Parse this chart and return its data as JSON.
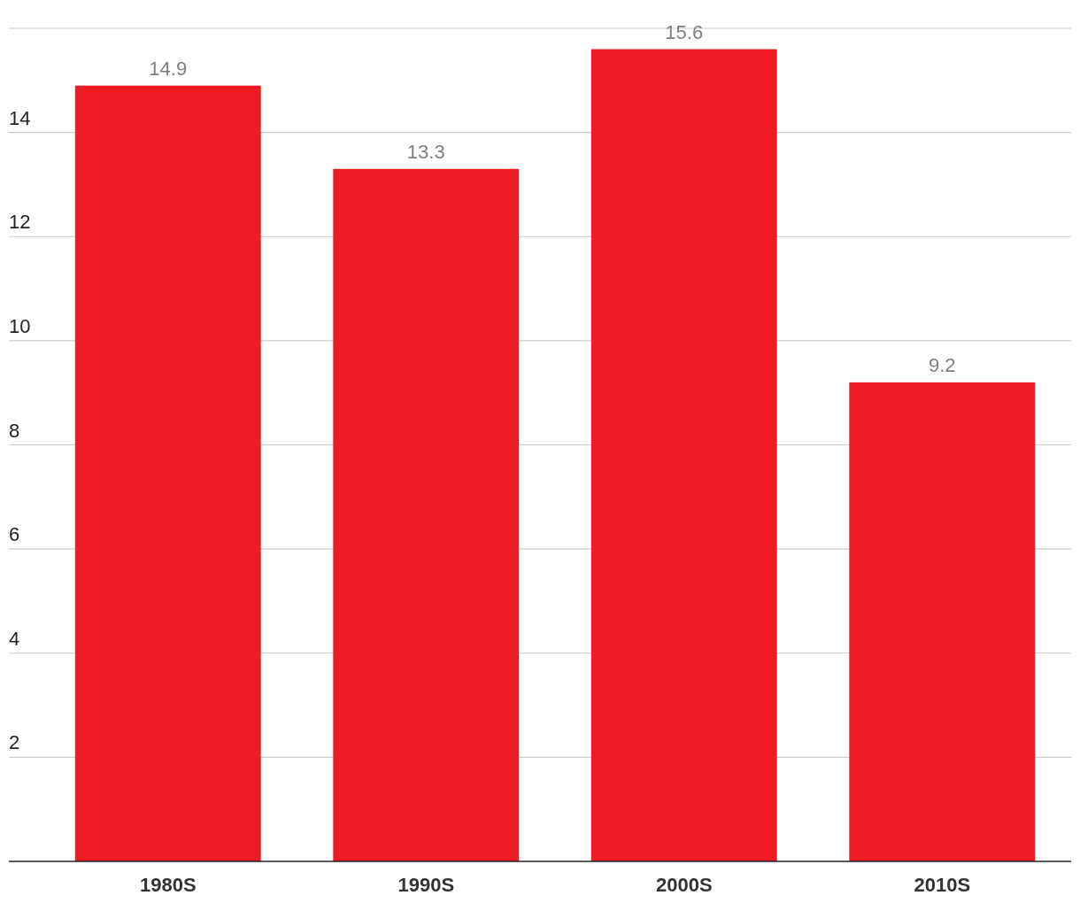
{
  "chart_data": {
    "type": "bar",
    "categories": [
      "1980S",
      "1990S",
      "2000S",
      "2010S"
    ],
    "values": [
      14.9,
      13.3,
      15.6,
      9.2
    ],
    "color": "#ed1c24",
    "ylim": [
      0,
      16
    ],
    "yticks": [
      2,
      4,
      6,
      8,
      10,
      12,
      14,
      {
        "value": 16,
        "label": null
      }
    ],
    "grid": "y",
    "data_labels": true
  }
}
